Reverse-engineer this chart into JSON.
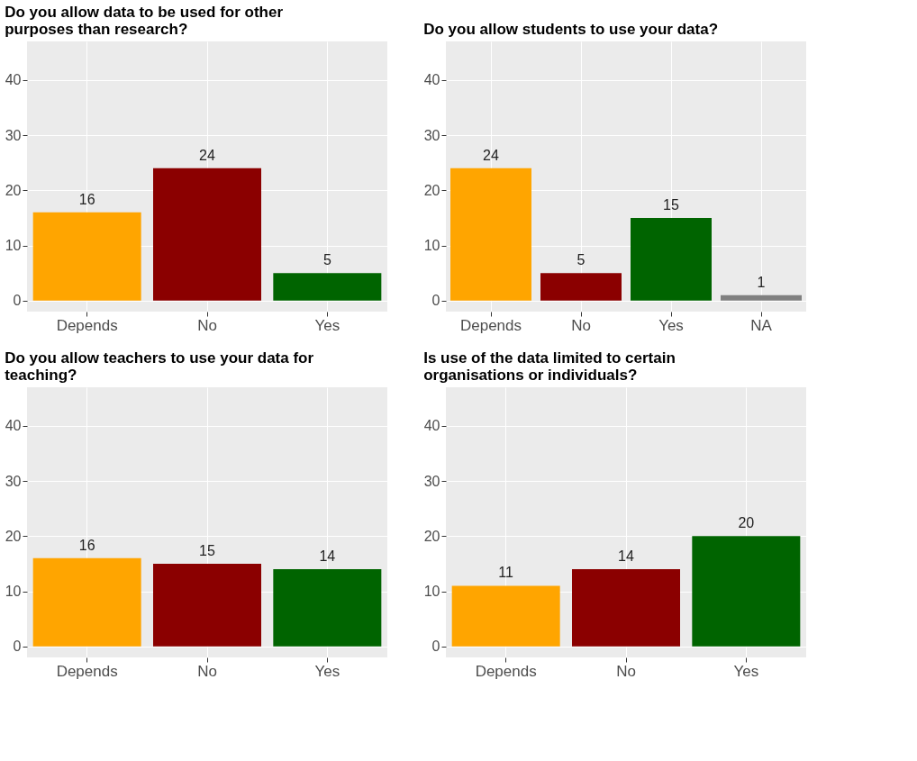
{
  "chart_data": [
    {
      "type": "bar",
      "title": [
        "Do you allow data to be used for other",
        "purposes than research?"
      ],
      "categories": [
        "Depends",
        "No",
        "Yes"
      ],
      "values": [
        16,
        24,
        5
      ],
      "colors": [
        "#ffa500",
        "#8b0000",
        "#006400"
      ],
      "data_labels": true,
      "ylim": [
        -2,
        47
      ],
      "yticks": [
        0,
        10,
        20,
        30,
        40
      ],
      "grid": true
    },
    {
      "type": "bar",
      "title": "Do you allow students to use your data?",
      "categories": [
        "Depends",
        "No",
        "Yes",
        "NA"
      ],
      "values": [
        24,
        5,
        15,
        1
      ],
      "colors": [
        "#ffa500",
        "#8b0000",
        "#006400",
        "#808080"
      ],
      "data_labels": true,
      "ylim": [
        -2,
        47
      ],
      "yticks": [
        0,
        10,
        20,
        30,
        40
      ],
      "grid": true
    },
    {
      "type": "bar",
      "title": [
        "Do you allow teachers to use your data for",
        "teaching?"
      ],
      "categories": [
        "Depends",
        "No",
        "Yes"
      ],
      "values": [
        16,
        15,
        14
      ],
      "colors": [
        "#ffa500",
        "#8b0000",
        "#006400"
      ],
      "data_labels": true,
      "ylim": [
        -2,
        47
      ],
      "yticks": [
        0,
        10,
        20,
        30,
        40
      ],
      "grid": true
    },
    {
      "type": "bar",
      "title": [
        "Is use of the data limited to certain",
        "organisations or individuals?"
      ],
      "categories": [
        "Depends",
        "No",
        "Yes"
      ],
      "values": [
        11,
        14,
        20
      ],
      "colors": [
        "#ffa500",
        "#8b0000",
        "#006400"
      ],
      "data_labels": true,
      "ylim": [
        -2,
        47
      ],
      "yticks": [
        0,
        10,
        20,
        30,
        40
      ],
      "grid": true
    }
  ]
}
